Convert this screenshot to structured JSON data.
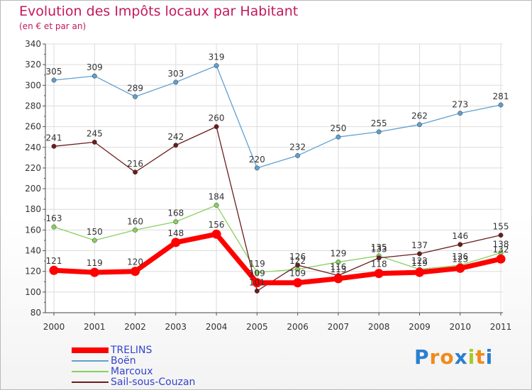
{
  "title": "Evolution des Impôts locaux par Habitant",
  "subtitle": "(en € et par an)",
  "brand": "Proxiti",
  "chart_data": {
    "type": "line",
    "title": "Evolution des Impôts locaux par Habitant",
    "subtitle": "(en € et par an)",
    "x": [
      "2000",
      "2001",
      "2002",
      "2003",
      "2004",
      "2005",
      "2006",
      "2007",
      "2008",
      "2009",
      "2010",
      "2011"
    ],
    "ylim": [
      80,
      340
    ],
    "yticks": [
      80,
      100,
      120,
      140,
      160,
      180,
      200,
      220,
      240,
      260,
      280,
      300,
      320,
      340
    ],
    "grid": true,
    "legend_position": "bottom-left",
    "series": [
      {
        "name": "TRELINS",
        "color": "#ff0000",
        "values": [
          121,
          119,
          120,
          148,
          156,
          109,
          109,
          113,
          118,
          119,
          123,
          132
        ]
      },
      {
        "name": "Boën",
        "color": "#5fa0d0",
        "values": [
          305,
          309,
          289,
          303,
          319,
          220,
          232,
          250,
          255,
          262,
          273,
          281
        ]
      },
      {
        "name": "Marcoux",
        "color": "#88d060",
        "values": [
          163,
          150,
          160,
          168,
          184,
          119,
          122,
          129,
          135,
          122,
          126,
          138
        ]
      },
      {
        "name": "Sail-sous-Couzan",
        "color": "#6b1c1c",
        "values": [
          241,
          245,
          216,
          242,
          260,
          101,
          126,
          116,
          133,
          137,
          146,
          155
        ]
      }
    ]
  }
}
